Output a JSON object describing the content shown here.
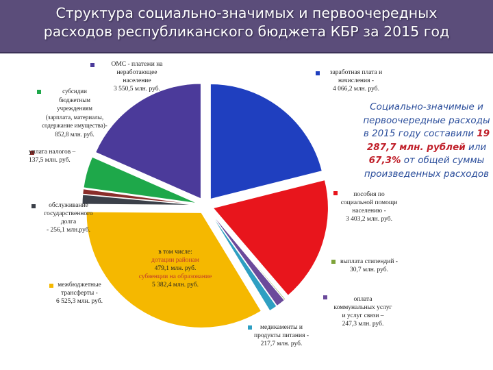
{
  "title": "Структура социально-значимых и первоочередных\nрасходов республиканского бюджета КБР за 2015 год",
  "summary": {
    "line1": "Социально-значимые и первоочередные расходы в 2015 году составили",
    "total": "19 287,7 млн. рублей",
    "line2a": "или",
    "share": "67,3%",
    "line2b": "от общей суммы произведенных расходов"
  },
  "labels": {
    "oms": "ОМС - платежи на\nнеработающее\nнаселение\n3 550,5 млн. руб.",
    "wages": "заработная плата и\nначисления -\n4 066,2 млн. руб.",
    "subsidies": "субсидии\nбюджетным\nучреждениям\n(зарплата, материалы,\nсодержание имущества)-\n852,8 млн. руб.",
    "taxes": "уплата налогов –\n137,5 млн. руб.",
    "debt": "обслуживание\nгосударственного\nдолга\n- 256,1 млн.руб.",
    "transfers": "межбюджетные\nтрансферты -\n6 525,3 млн. руб.",
    "transfers_sub_head": "в том числе:",
    "transfers_sub_1": "дотации районам",
    "transfers_sub_1_val": "479,1 млн. руб.",
    "transfers_sub_2": "субвенции на образование",
    "transfers_sub_2_val": "5 382,4 млн. руб.",
    "benefits": "пособия по\nсоциальной помощи\nнаселению -\n3 403,2 млн. руб.",
    "stipends": "выплата стипендий -\n30,7 млн. руб.",
    "utilities": "оплата\nкоммунальных услуг\nи услуг связи –\n247,3 млн. руб.",
    "medicines": "медикаменты и\nпродукты питания -\n217,7 млн. руб."
  },
  "chart_data": {
    "type": "pie",
    "title": "Структура социально-значимых и первоочередных расходов республиканского бюджета КБР за 2015 год",
    "unit": "млн. руб.",
    "slices": [
      {
        "name": "заработная плата и начисления",
        "value": 4066.2,
        "color": "#1f3fbf"
      },
      {
        "name": "пособия по социальной помощи населению",
        "value": 3403.2,
        "color": "#e8151c"
      },
      {
        "name": "выплата стипендий",
        "value": 30.7,
        "color": "#7ea33a"
      },
      {
        "name": "оплата коммунальных услуг и услуг связи",
        "value": 247.3,
        "color": "#6b4a9b"
      },
      {
        "name": "медикаменты и продукты питания",
        "value": 217.7,
        "color": "#2e9fc2"
      },
      {
        "name": "межбюджетные трансферты",
        "value": 6525.3,
        "color": "#f5b800"
      },
      {
        "name": "обслуживание государственного долга",
        "value": 256.1,
        "color": "#3b4049"
      },
      {
        "name": "уплата налогов",
        "value": 137.5,
        "color": "#8a2e2a"
      },
      {
        "name": "субсидии бюджетным учреждениям",
        "value": 852.8,
        "color": "#1ea84a"
      },
      {
        "name": "ОМС - платежи на неработающее население",
        "value": 3550.5,
        "color": "#4b3a9a"
      }
    ]
  }
}
